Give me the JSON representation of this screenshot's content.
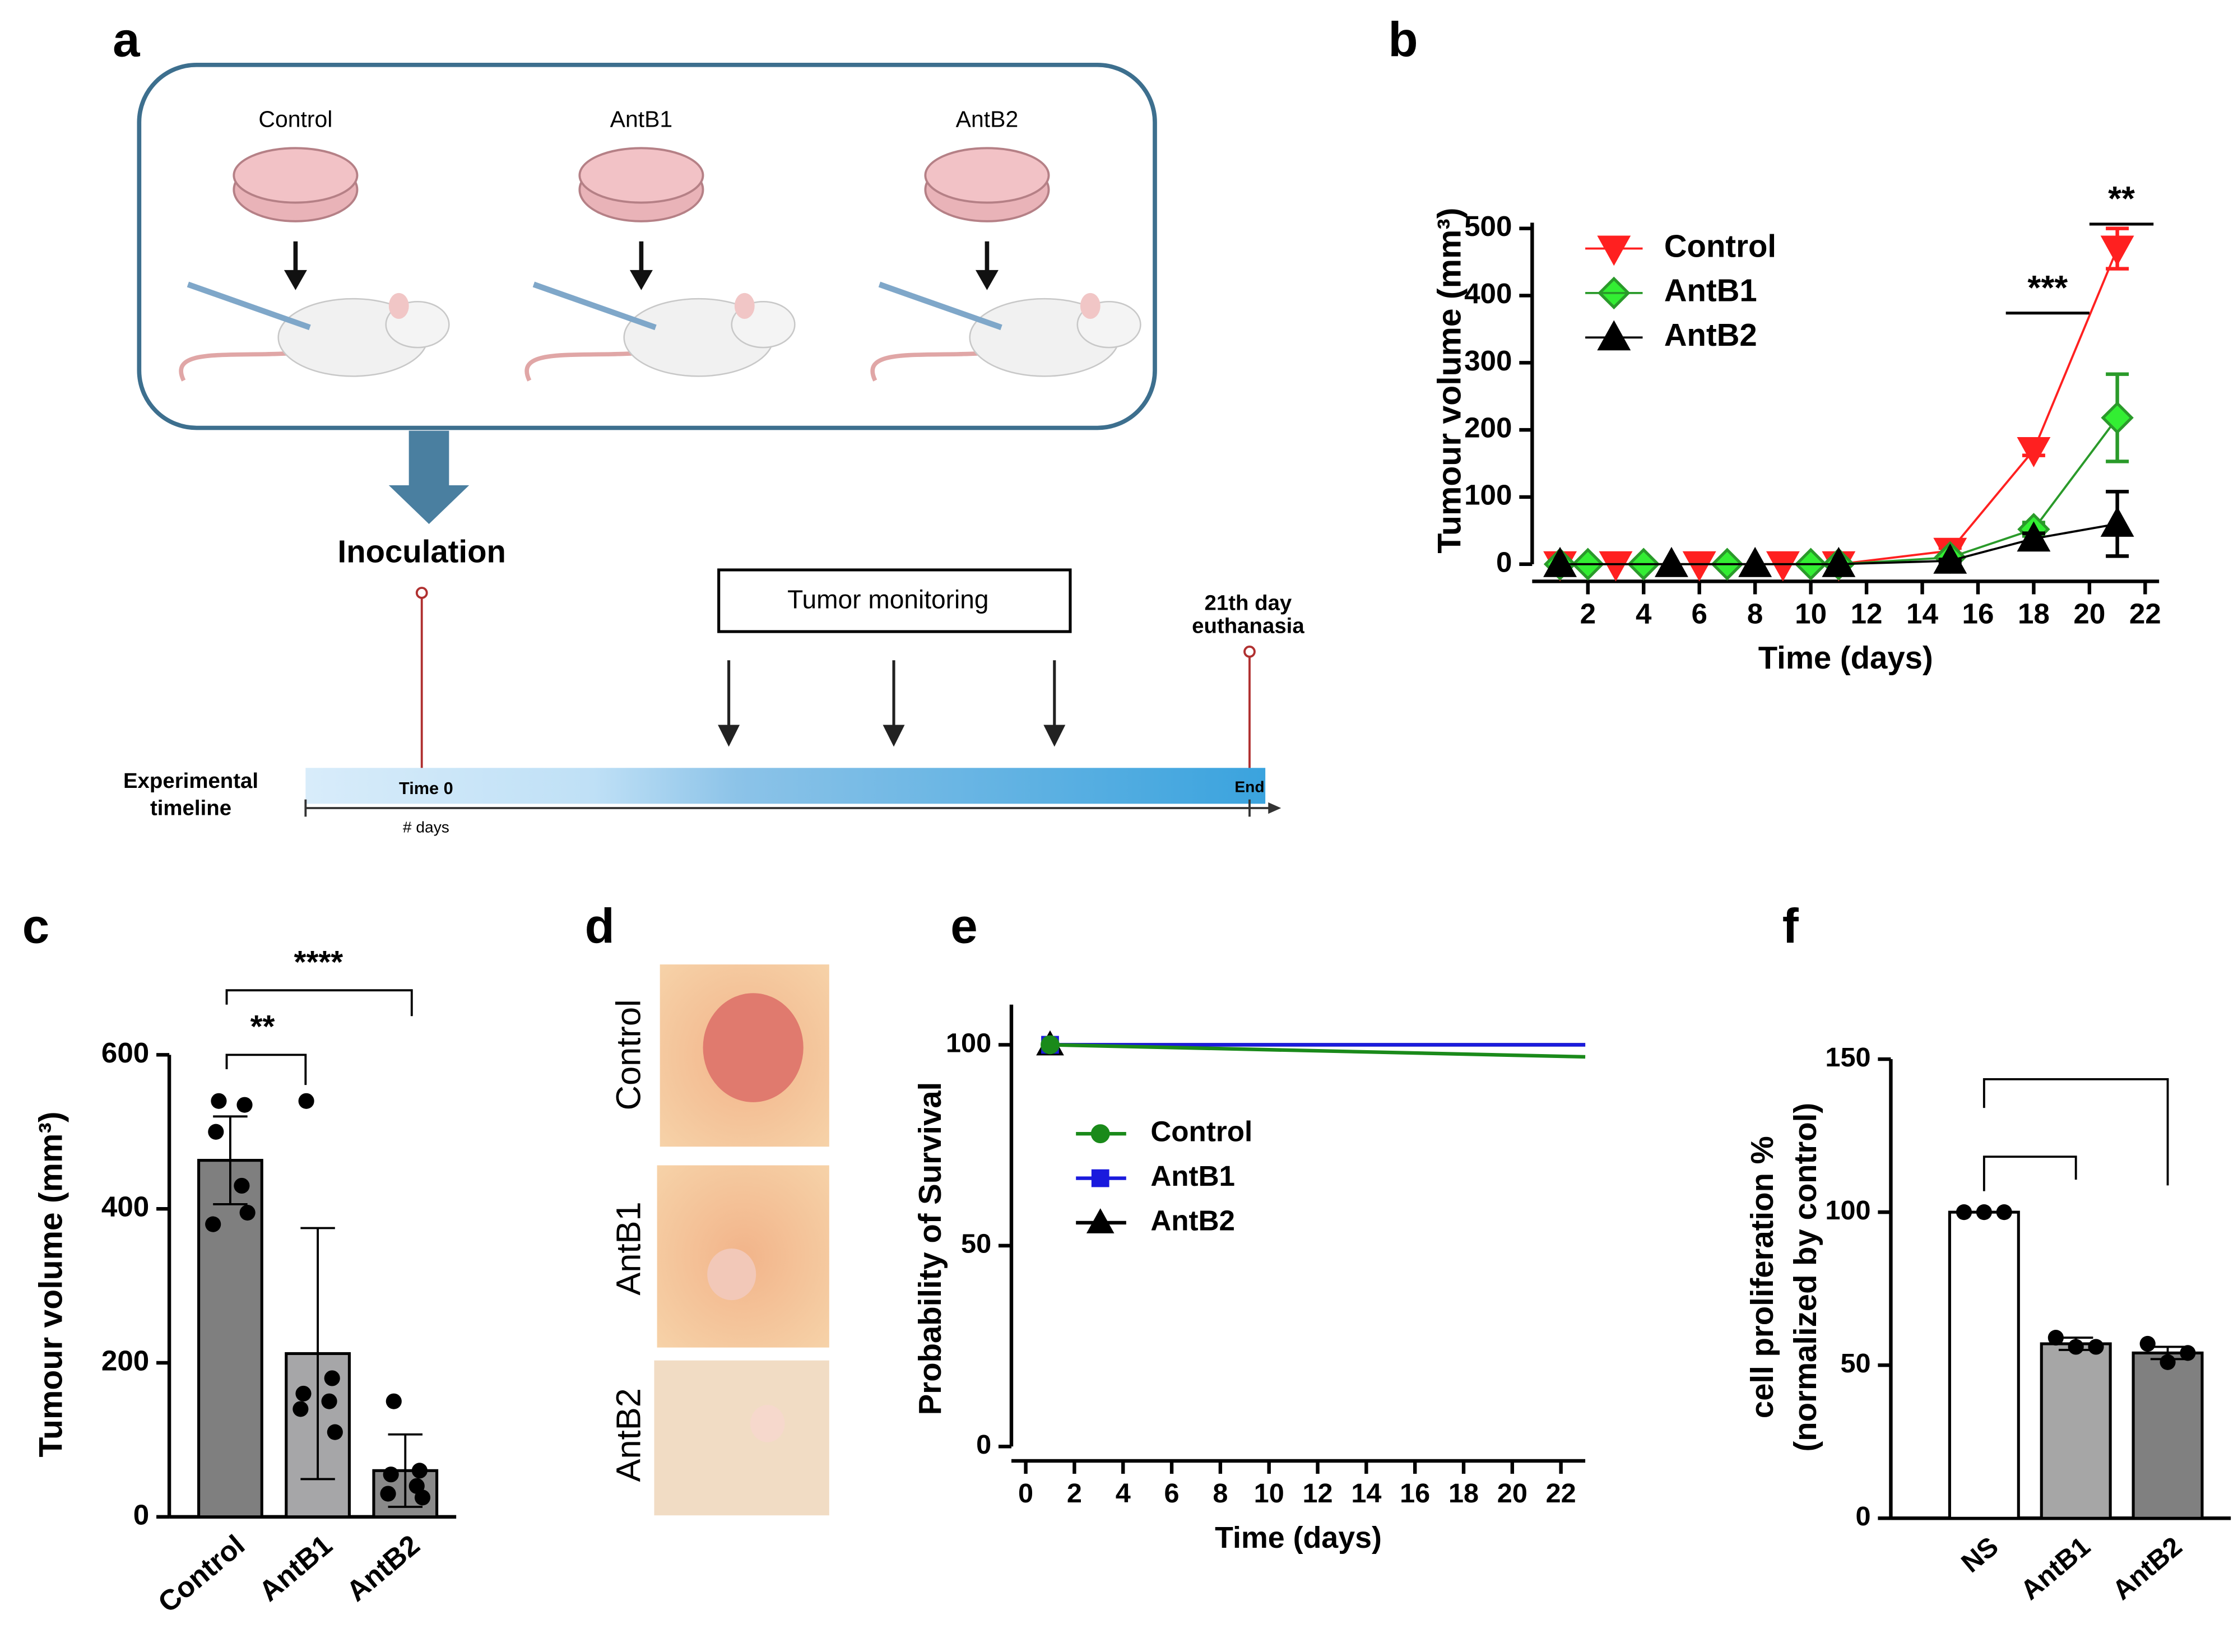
{
  "panel_labels": [
    "a",
    "b",
    "c",
    "d",
    "e",
    "f"
  ],
  "diagram": {
    "groups": [
      "Control",
      "AntB1",
      "AntB2"
    ],
    "inoculation": "Inoculation",
    "monitoring": "Tumor monitoring",
    "end_label": [
      "21th day",
      "euthanasia"
    ],
    "timeline_label": [
      "Experimental",
      "timeline"
    ],
    "time0": "Time 0",
    "end": "End",
    "days": "# days"
  },
  "photos": {
    "labels": [
      "Control",
      "AntB1",
      "AntB2"
    ]
  },
  "chart_data": [
    {
      "type": "line",
      "xlabel": "Time (days)",
      "ylabel": "Tumour volume (mm³)",
      "xlim": [
        0,
        22.5
      ],
      "xticks": [
        2,
        4,
        6,
        8,
        10,
        12,
        14,
        16,
        18,
        20,
        22
      ],
      "ylim": [
        0,
        500
      ],
      "yticks": [
        0,
        100,
        200,
        300,
        400,
        500
      ],
      "legend": "upper left",
      "series": [
        {
          "name": "Control",
          "color": "#ff2020",
          "marker": "triangle-down",
          "x": [
            1,
            3,
            6,
            9,
            11,
            15,
            18,
            21
          ],
          "values": [
            0,
            0,
            0,
            0,
            0,
            20,
            170,
            470
          ],
          "errors": [
            0,
            0,
            0,
            0,
            0,
            4,
            8,
            30
          ]
        },
        {
          "name": "AntB1",
          "color": "#2a9a2a",
          "fill": "#33ee33",
          "marker": "diamond",
          "x": [
            1,
            2,
            4,
            7,
            10,
            11,
            15,
            18,
            21
          ],
          "values": [
            0,
            0,
            0,
            0,
            0,
            0,
            10,
            52,
            218
          ],
          "errors": [
            0,
            0,
            0,
            0,
            0,
            0,
            3,
            10,
            65
          ]
        },
        {
          "name": "AntB2",
          "color": "#000000",
          "marker": "triangle",
          "x": [
            1,
            5,
            8,
            11,
            15,
            18,
            21
          ],
          "values": [
            0,
            0,
            0,
            0,
            5,
            38,
            60
          ],
          "errors": [
            0,
            0,
            0,
            0,
            2,
            8,
            48
          ]
        }
      ],
      "annotations": [
        {
          "text": "***"
        },
        {
          "text": "**"
        }
      ]
    },
    {
      "type": "bar",
      "ylabel": "Tumour volume (mm³)",
      "categories": [
        "Control",
        "AntB1",
        "AntB2"
      ],
      "values": [
        463,
        212,
        60
      ],
      "errors": [
        57,
        163,
        47
      ],
      "points": [
        [
          540,
          535,
          500,
          430,
          380,
          395
        ],
        [
          540,
          180,
          160,
          150,
          140,
          110
        ],
        [
          150,
          60,
          55,
          40,
          30,
          25
        ]
      ],
      "colors": [
        "#7f7f7f",
        "#a6a6a8",
        "#8a8a8a"
      ],
      "ylim": [
        0,
        600
      ],
      "yticks": [
        0,
        200,
        400,
        600
      ],
      "annotations": [
        {
          "text": "**"
        },
        {
          "text": "****"
        }
      ]
    },
    {
      "type": "survival",
      "xlabel": "Time (days)",
      "ylabel": "Probability of Survival",
      "xlim": [
        0,
        23
      ],
      "xticks": [
        0,
        2,
        4,
        6,
        8,
        10,
        12,
        14,
        16,
        18,
        20,
        22
      ],
      "ylim": [
        0,
        110
      ],
      "yticks": [
        0,
        50,
        100
      ],
      "legend": "center left",
      "series": [
        {
          "name": "Control",
          "color": "#1a8a1a",
          "marker": "circle",
          "x": [
            1,
            23
          ],
          "values": [
            100,
            97
          ]
        },
        {
          "name": "AntB1",
          "color": "#1a1add",
          "marker": "square",
          "x": [
            1,
            23
          ],
          "values": [
            100,
            100
          ]
        },
        {
          "name": "AntB2",
          "color": "#000000",
          "marker": "triangle",
          "x": [
            1,
            23
          ],
          "values": [
            100,
            100
          ]
        }
      ]
    },
    {
      "type": "bar",
      "ylabel": [
        "cell proliferation %",
        "(normalized by control)"
      ],
      "categories": [
        "NS",
        "AntB1",
        "AntB2"
      ],
      "values": [
        100,
        57,
        54
      ],
      "errors": [
        0,
        2,
        2
      ],
      "points": [
        [
          100,
          100,
          100
        ],
        [
          59,
          56,
          56
        ],
        [
          57,
          51,
          54
        ]
      ],
      "colors": [
        "#ffffff",
        "#a6a6a6",
        "#808080"
      ],
      "ylim": [
        0,
        150
      ],
      "yticks": [
        0,
        50,
        100,
        150
      ]
    }
  ]
}
